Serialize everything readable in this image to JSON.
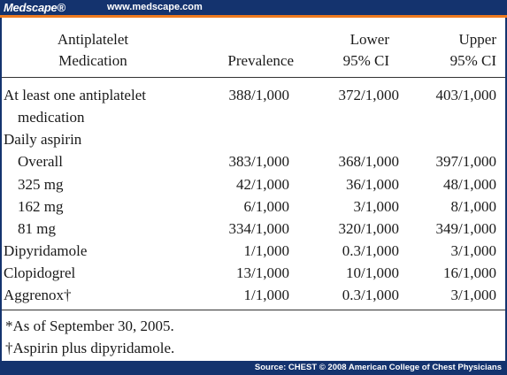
{
  "brand": {
    "logo": "Medscape®",
    "url": "www.medscape.com"
  },
  "headers": {
    "col1": [
      "Antiplatelet",
      "Medication"
    ],
    "col2": [
      "Prevalence"
    ],
    "col3": [
      "Lower",
      "95% CI"
    ],
    "col4": [
      "Upper",
      "95% CI"
    ]
  },
  "rows": [
    {
      "label": "At least one antiplatelet",
      "prevalence": "388/1,000",
      "lower": "372/1,000",
      "upper": "403/1,000"
    },
    {
      "label": "medication",
      "prevalence": "",
      "lower": "",
      "upper": ""
    },
    {
      "label": "Daily aspirin",
      "prevalence": "",
      "lower": "",
      "upper": ""
    },
    {
      "label": "Overall",
      "prevalence": "383/1,000",
      "lower": "368/1,000",
      "upper": "397/1,000"
    },
    {
      "label": "325 mg",
      "prevalence": "42/1,000",
      "lower": "36/1,000",
      "upper": "48/1,000"
    },
    {
      "label": "162 mg",
      "prevalence": "6/1,000",
      "lower": "3/1,000",
      "upper": "8/1,000"
    },
    {
      "label": "81 mg",
      "prevalence": "334/1,000",
      "lower": "320/1,000",
      "upper": "349/1,000"
    },
    {
      "label": "Dipyridamole",
      "prevalence": "1/1,000",
      "lower": "0.3/1,000",
      "upper": "3/1,000"
    },
    {
      "label": "Clopidogrel",
      "prevalence": "13/1,000",
      "lower": "10/1,000",
      "upper": "16/1,000"
    },
    {
      "label": "Aggrenox†",
      "prevalence": "1/1,000",
      "lower": "0.3/1,000",
      "upper": "3/1,000"
    }
  ],
  "footnotes": [
    "*As of September 30, 2005.",
    "†Aspirin plus dipyridamole."
  ],
  "source": "Source: CHEST © 2008 American College of Chest Physicians",
  "colors": {
    "bar": "#14336e",
    "accent": "#ee7a1f"
  }
}
